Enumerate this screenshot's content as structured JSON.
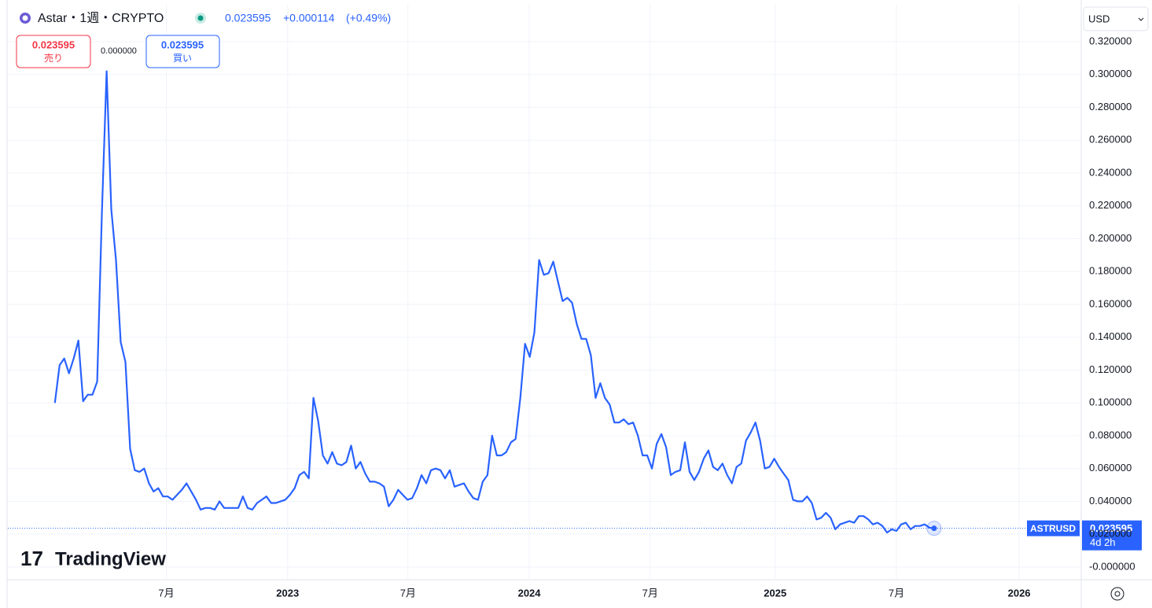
{
  "header": {
    "symbol": "Astar・1週・CRYPTO",
    "last": "0.023595",
    "change": "+0.000114",
    "change_pct": "(+0.49%)"
  },
  "trade": {
    "sell_price": "0.023595",
    "sell_label": "売り",
    "spread": "0.000000",
    "buy_price": "0.023595",
    "buy_label": "買い"
  },
  "currency": "USD",
  "price_tag": {
    "symbol": "ASTRUSD",
    "price": "0.023595",
    "countdown": "4d 2h"
  },
  "brand": "TradingView",
  "chart_data": {
    "type": "line",
    "color": "#2962ff",
    "grid": true,
    "values": [
      0.1,
      0.123,
      0.127,
      0.118,
      0.127,
      0.138,
      0.101,
      0.105,
      0.105,
      0.113,
      0.216,
      0.302,
      0.218,
      0.187,
      0.137,
      0.125,
      0.072,
      0.059,
      0.058,
      0.06,
      0.051,
      0.046,
      0.048,
      0.043,
      0.043,
      0.041,
      0.044,
      0.047,
      0.051,
      0.046,
      0.041,
      0.035,
      0.036,
      0.036,
      0.035,
      0.04,
      0.036,
      0.036,
      0.036,
      0.036,
      0.043,
      0.036,
      0.035,
      0.039,
      0.041,
      0.043,
      0.039,
      0.039,
      0.04,
      0.041,
      0.044,
      0.048,
      0.056,
      0.058,
      0.054,
      0.103,
      0.089,
      0.068,
      0.063,
      0.07,
      0.063,
      0.062,
      0.064,
      0.074,
      0.06,
      0.064,
      0.057,
      0.052,
      0.052,
      0.051,
      0.049,
      0.037,
      0.041,
      0.047,
      0.044,
      0.041,
      0.042,
      0.048,
      0.056,
      0.051,
      0.059,
      0.06,
      0.059,
      0.054,
      0.059,
      0.049,
      0.05,
      0.051,
      0.046,
      0.042,
      0.041,
      0.052,
      0.056,
      0.08,
      0.068,
      0.068,
      0.07,
      0.076,
      0.078,
      0.103,
      0.136,
      0.128,
      0.143,
      0.187,
      0.178,
      0.179,
      0.186,
      0.174,
      0.162,
      0.164,
      0.161,
      0.148,
      0.139,
      0.139,
      0.129,
      0.103,
      0.112,
      0.103,
      0.099,
      0.088,
      0.088,
      0.09,
      0.087,
      0.088,
      0.08,
      0.068,
      0.068,
      0.06,
      0.075,
      0.081,
      0.073,
      0.056,
      0.058,
      0.059,
      0.076,
      0.058,
      0.053,
      0.058,
      0.066,
      0.071,
      0.061,
      0.059,
      0.063,
      0.056,
      0.051,
      0.061,
      0.063,
      0.077,
      0.082,
      0.088,
      0.077,
      0.06,
      0.061,
      0.066,
      0.061,
      0.057,
      0.053,
      0.041,
      0.04,
      0.04,
      0.043,
      0.039,
      0.029,
      0.03,
      0.033,
      0.03,
      0.023,
      0.026,
      0.027,
      0.028,
      0.027,
      0.031,
      0.031,
      0.029,
      0.026,
      0.027,
      0.025,
      0.021,
      0.023,
      0.022,
      0.026,
      0.027,
      0.023,
      0.025,
      0.025,
      0.026,
      0.024,
      0.023595
    ],
    "xlim": [
      -10.0,
      218.3
    ],
    "xticks": [
      {
        "value": 23.7,
        "label": "7月"
      },
      {
        "value": 49.5,
        "label": "2023"
      },
      {
        "value": 75.1,
        "label": "7月"
      },
      {
        "value": 100.9,
        "label": "2024"
      },
      {
        "value": 126.6,
        "label": "7月"
      },
      {
        "value": 153.2,
        "label": "2025"
      },
      {
        "value": 179.0,
        "label": "7月"
      },
      {
        "value": 205.1,
        "label": "2026"
      }
    ],
    "ylim": [
      -0.0077,
      0.343
    ],
    "yticks": [
      {
        "value": 0,
        "label": "-0.000000"
      },
      {
        "value": 0.02,
        "label": "0.020000"
      },
      {
        "value": 0.04,
        "label": "0.040000"
      },
      {
        "value": 0.06,
        "label": "0.060000"
      },
      {
        "value": 0.08,
        "label": "0.080000"
      },
      {
        "value": 0.1,
        "label": "0.100000"
      },
      {
        "value": 0.12,
        "label": "0.120000"
      },
      {
        "value": 0.14,
        "label": "0.140000"
      },
      {
        "value": 0.16,
        "label": "0.160000"
      },
      {
        "value": 0.18,
        "label": "0.180000"
      },
      {
        "value": 0.2,
        "label": "0.200000"
      },
      {
        "value": 0.22,
        "label": "0.220000"
      },
      {
        "value": 0.24,
        "label": "0.240000"
      },
      {
        "value": 0.26,
        "label": "0.260000"
      },
      {
        "value": 0.28,
        "label": "0.280000"
      },
      {
        "value": 0.3,
        "label": "0.300000"
      },
      {
        "value": 0.32,
        "label": "0.320000"
      }
    ]
  }
}
